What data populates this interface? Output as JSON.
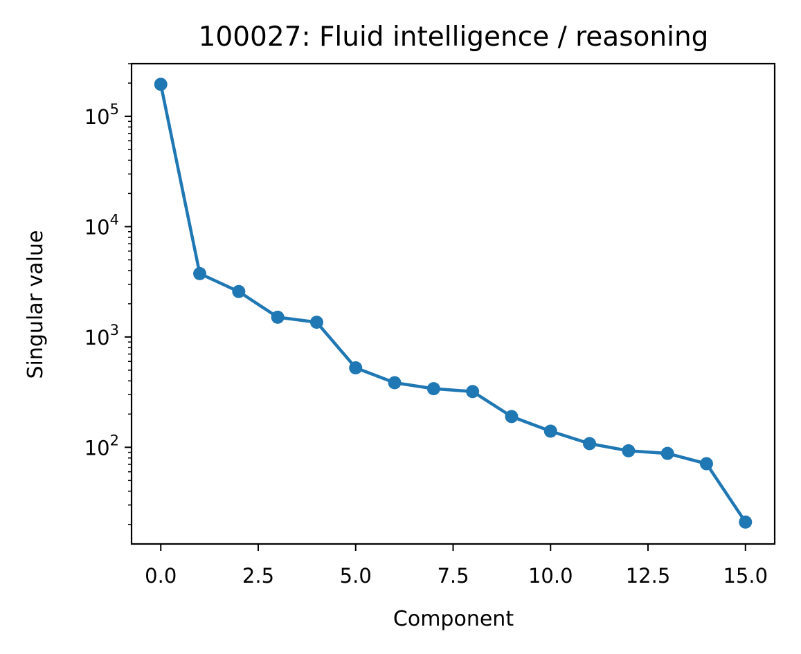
{
  "chart_data": {
    "type": "line",
    "title": "100027: Fluid intelligence / reasoning",
    "xlabel": "Component",
    "ylabel": "Singular value",
    "x": [
      0,
      1,
      2,
      3,
      4,
      5,
      6,
      7,
      8,
      9,
      10,
      11,
      12,
      13,
      14,
      15
    ],
    "series": [
      {
        "name": "",
        "color": "#1f77b4",
        "marker": "circle",
        "values": [
          195000,
          3750,
          2580,
          1510,
          1360,
          525,
          385,
          340,
          320,
          190,
          140,
          108,
          93,
          88,
          71,
          21
        ]
      }
    ],
    "xlim": [
      -0.75,
      15.75
    ],
    "ylim": [
      13.3,
      300000
    ],
    "yscale": "log",
    "xticks": [
      0,
      2.5,
      5,
      7.5,
      10,
      12.5,
      15
    ],
    "xtick_labels": [
      "0.0",
      "2.5",
      "5.0",
      "7.5",
      "10.0",
      "12.5",
      "15.0"
    ],
    "yticks": [
      100,
      1000,
      10000,
      100000
    ],
    "ytick_labels": [
      {
        "base": "10",
        "exp": "2"
      },
      {
        "base": "10",
        "exp": "3"
      },
      {
        "base": "10",
        "exp": "4"
      },
      {
        "base": "10",
        "exp": "5"
      }
    ],
    "grid": false,
    "legend": "none"
  }
}
